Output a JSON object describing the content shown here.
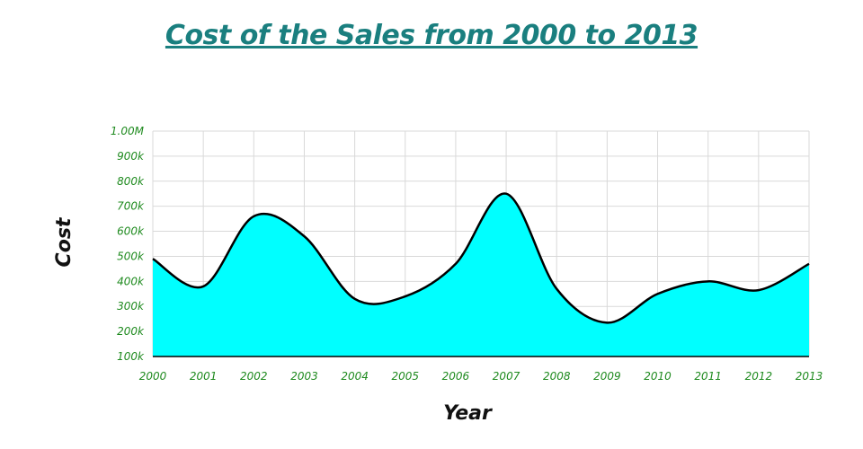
{
  "chart_data": {
    "type": "area",
    "title": "Cost of the Sales from 2000 to 2013",
    "xlabel": "Year",
    "ylabel": "Cost",
    "x": [
      "2000",
      "2001",
      "2002",
      "2003",
      "2004",
      "2005",
      "2006",
      "2007",
      "2008",
      "2009",
      "2010",
      "2011",
      "2012",
      "2013"
    ],
    "series": [
      {
        "values": [
          490000,
          380000,
          660000,
          580000,
          330000,
          340000,
          470000,
          750000,
          370000,
          235000,
          350000,
          400000,
          365000,
          470000
        ]
      }
    ],
    "ylim": [
      100000,
      1000000
    ],
    "yticks": [
      100000,
      200000,
      300000,
      400000,
      500000,
      600000,
      700000,
      800000,
      900000,
      1000000
    ],
    "ytick_labels": [
      "100k",
      "200k",
      "300k",
      "400k",
      "500k",
      "600k",
      "700k",
      "800k",
      "900k",
      "1.00M"
    ],
    "grid": true,
    "colors": {
      "fill": "#00ffff",
      "line": "#000000",
      "title": "#1a7f7f",
      "ticks": "#1e8a1e",
      "grid": "#d9d9d9"
    }
  }
}
